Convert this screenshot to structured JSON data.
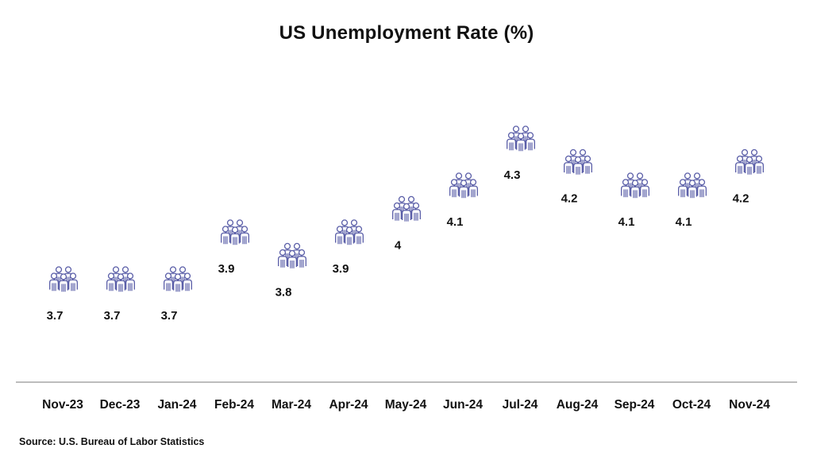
{
  "chart_data": {
    "type": "scatter",
    "title": "US Unemployment Rate (%)",
    "categories": [
      "Nov-23",
      "Dec-23",
      "Jan-24",
      "Feb-24",
      "Mar-24",
      "Apr-24",
      "May-24",
      "Jun-24",
      "Jul-24",
      "Aug-24",
      "Sep-24",
      "Oct-24",
      "Nov-24"
    ],
    "values": [
      3.7,
      3.7,
      3.7,
      3.9,
      3.8,
      3.9,
      4,
      4.1,
      4.3,
      4.2,
      4.1,
      4.1,
      4.2
    ],
    "value_labels": [
      "3.7",
      "3.7",
      "3.7",
      "3.9",
      "3.8",
      "3.9",
      "4",
      "4.1",
      "4.3",
      "4.2",
      "4.1",
      "4.1",
      "4.2"
    ],
    "marker": "people-group-icon",
    "marker_color": "#5b5fa8",
    "grid": false,
    "legend": "none"
  },
  "source": "Source: U.S. Bureau of Labor Statistics"
}
